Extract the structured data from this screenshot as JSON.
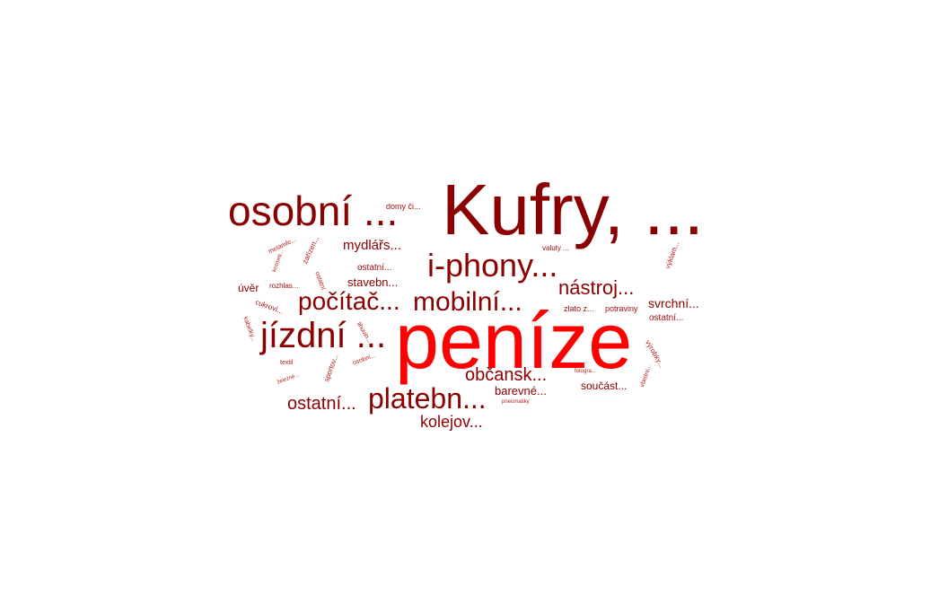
{
  "colors": {
    "primary": "#ff0000",
    "dark_red": "#8b0000",
    "mid_red": "#9e0b0b",
    "light_red": "#b01c1c"
  },
  "words": [
    {
      "id": "penize",
      "text": "peníze"
    },
    {
      "id": "kufry",
      "text": "Kufry, ..."
    },
    {
      "id": "osobni",
      "text": "osobní ..."
    },
    {
      "id": "jizdni",
      "text": "jízdní ..."
    },
    {
      "id": "iphony",
      "text": "i-phony..."
    },
    {
      "id": "platebn",
      "text": "platebn..."
    },
    {
      "id": "mobilni",
      "text": "mobilní..."
    },
    {
      "id": "pocitac",
      "text": "počítač..."
    },
    {
      "id": "nastroj",
      "text": "nástroj..."
    },
    {
      "id": "obcansk",
      "text": "občansk..."
    },
    {
      "id": "ostatni_big",
      "text": "ostatní..."
    },
    {
      "id": "kolejov",
      "text": "kolejov..."
    },
    {
      "id": "mydlars",
      "text": "mydlářs..."
    },
    {
      "id": "svrchni",
      "text": "svrchní..."
    },
    {
      "id": "barevne",
      "text": "barevné..."
    },
    {
      "id": "stavebn",
      "text": "stavebn..."
    },
    {
      "id": "soucast",
      "text": "součást..."
    },
    {
      "id": "uver",
      "text": "úvěr"
    },
    {
      "id": "ostatni_mid",
      "text": "ostatní..."
    },
    {
      "id": "ostatni_right",
      "text": "ostatní..."
    },
    {
      "id": "domy",
      "text": "domy či..."
    },
    {
      "id": "zlato",
      "text": "zlato z..."
    },
    {
      "id": "potraviny",
      "text": "potraviny"
    },
    {
      "id": "valuty",
      "text": "valuty ..."
    },
    {
      "id": "rozhlas",
      "text": "rozhlas..."
    },
    {
      "id": "cukrovi",
      "text": "cukroví..."
    },
    {
      "id": "textil",
      "text": "textil"
    },
    {
      "id": "fotogra",
      "text": "fotogra..."
    },
    {
      "id": "pneumatiky",
      "text": "pneumatiky"
    },
    {
      "id": "zarizen",
      "text": "zařízen..."
    },
    {
      "id": "metamfe",
      "text": "metamfe..."
    },
    {
      "id": "sportov",
      "text": "sportov..."
    },
    {
      "id": "vyrobky",
      "text": "výrobky..."
    },
    {
      "id": "vyklam",
      "text": "výklam..."
    },
    {
      "id": "lihovin",
      "text": "lihovin..."
    },
    {
      "id": "osobni_small",
      "text": "osobní..."
    },
    {
      "id": "zelezne",
      "text": "železné..."
    },
    {
      "id": "kabelky",
      "text": "kabelky..."
    },
    {
      "id": "kosmeti",
      "text": "kosmeti..."
    },
    {
      "id": "vlastni",
      "text": "vlastní..."
    },
    {
      "id": "ostatni_tiny",
      "text": "ostatní"
    }
  ]
}
